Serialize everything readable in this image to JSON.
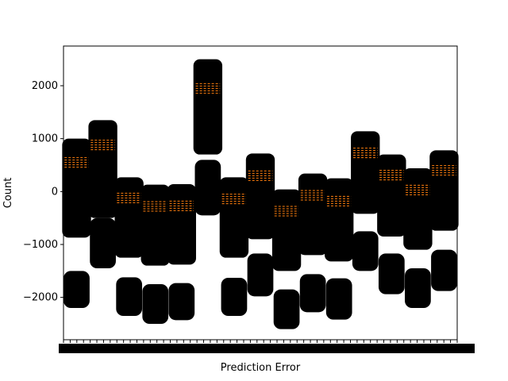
{
  "chart_data": {
    "type": "boxplot",
    "xlabel": "Prediction Error",
    "ylabel": "Count",
    "ylim": [
      -2800,
      2750
    ],
    "yticks": [
      -2000,
      -1000,
      0,
      1000,
      2000
    ],
    "ytick_labels": [
      "−2000",
      "−1000",
      "0",
      "1000",
      "2000"
    ],
    "xtick_labels_overlapping": true,
    "grid": false,
    "legend": "none",
    "series_color": "#000000",
    "median_color": "#ff7f0e",
    "groups": [
      {
        "lo": -1780,
        "q1": -870,
        "med": 550,
        "q3": 1000,
        "hi": 1000,
        "low_cluster": [
          -2200,
          -1500
        ]
      },
      {
        "lo": -1450,
        "q1": -500,
        "med": 880,
        "q3": 1350,
        "hi": 1350,
        "low_cluster": [
          -1450,
          -500
        ]
      },
      {
        "lo": -2350,
        "q1": -1250,
        "med": -120,
        "q3": 270,
        "hi": 270,
        "low_cluster": [
          -2350,
          -1620
        ]
      },
      {
        "lo": -2500,
        "q1": -1400,
        "med": -280,
        "q3": 130,
        "hi": 130,
        "low_cluster": [
          -2500,
          -1750
        ]
      },
      {
        "lo": -2430,
        "q1": -1380,
        "med": -270,
        "q3": 140,
        "hi": 140,
        "low_cluster": [
          -2430,
          -1730
        ]
      },
      {
        "lo": -450,
        "q1": 700,
        "med": 1950,
        "q3": 2500,
        "hi": 2500,
        "low_cluster": [
          -450,
          600
        ]
      },
      {
        "lo": -2350,
        "q1": -1250,
        "med": -140,
        "q3": 270,
        "hi": 270,
        "low_cluster": [
          -2350,
          -1630
        ]
      },
      {
        "lo": -1980,
        "q1": -900,
        "med": 300,
        "q3": 720,
        "hi": 720,
        "low_cluster": [
          -1980,
          -1170
        ]
      },
      {
        "lo": -2600,
        "q1": -1500,
        "med": -370,
        "q3": 40,
        "hi": 40,
        "low_cluster": [
          -2600,
          -1850
        ]
      },
      {
        "lo": -2280,
        "q1": -1200,
        "med": -70,
        "q3": 340,
        "hi": 340,
        "low_cluster": [
          -2280,
          -1560
        ]
      },
      {
        "lo": -2420,
        "q1": -1320,
        "med": -180,
        "q3": 250,
        "hi": 250,
        "low_cluster": [
          -2420,
          -1640
        ]
      },
      {
        "lo": -1500,
        "q1": -420,
        "med": 730,
        "q3": 1140,
        "hi": 1140,
        "low_cluster": [
          -1500,
          -750
        ]
      },
      {
        "lo": -1940,
        "q1": -850,
        "med": 310,
        "q3": 700,
        "hi": 700,
        "low_cluster": [
          -1940,
          -1170
        ]
      },
      {
        "lo": -2200,
        "q1": -1100,
        "med": 30,
        "q3": 440,
        "hi": 440,
        "low_cluster": [
          -2200,
          -1450
        ]
      },
      {
        "lo": -1880,
        "q1": -740,
        "med": 400,
        "q3": 780,
        "hi": 780,
        "low_cluster": [
          -1880,
          -1100
        ]
      }
    ]
  }
}
